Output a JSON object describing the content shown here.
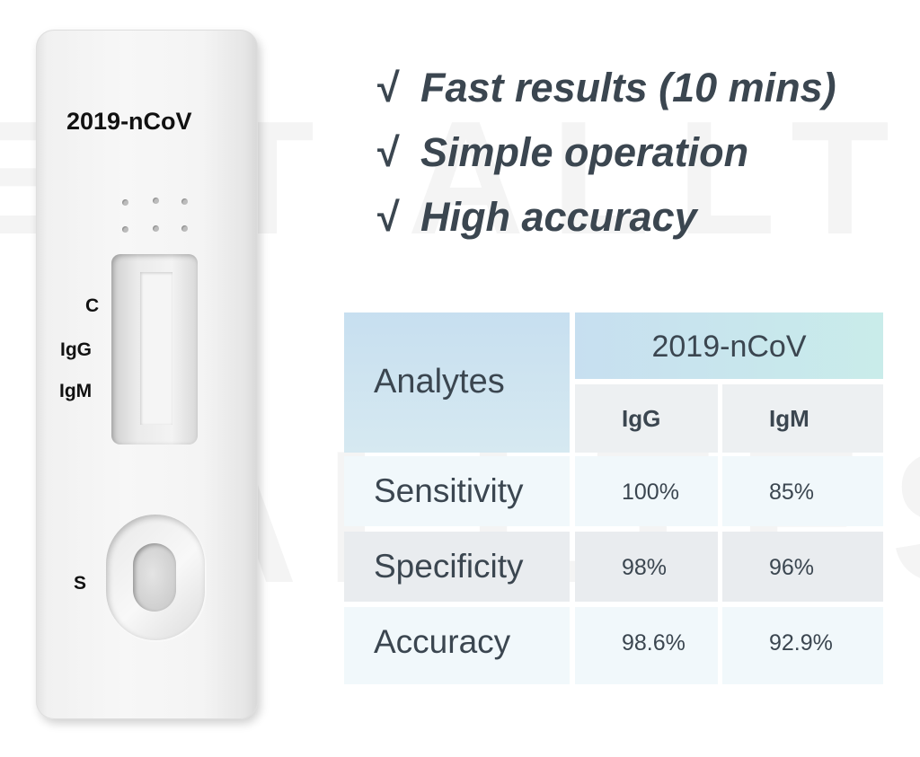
{
  "watermark": [
    "EST ALLT",
    "ALLTEST"
  ],
  "cassette": {
    "title": "2019-nCoV",
    "labels": {
      "c": "C",
      "igg": "IgG",
      "igm": "IgM",
      "s": "S"
    }
  },
  "features": {
    "check_glyph": "√",
    "items": [
      "Fast results (10 mins)",
      "Simple operation",
      "High accuracy"
    ]
  },
  "table": {
    "header": {
      "analytes": "Analytes",
      "group": "2019-nCoV",
      "col_igg": "IgG",
      "col_igm": "IgM"
    },
    "rows": [
      {
        "label": "Sensitivity",
        "igg": "100%",
        "igm": "85%"
      },
      {
        "label": "Specificity",
        "igg": "98%",
        "igm": "96%"
      },
      {
        "label": "Accuracy",
        "igg": "98.6%",
        "igm": "92.9%"
      }
    ]
  },
  "colors": {
    "text": "#3b4650",
    "header_blue": "#c7dff0",
    "header_teal": "#c9ecea",
    "row_light": "#f1f8fb",
    "row_gray": "#e9ecef"
  }
}
